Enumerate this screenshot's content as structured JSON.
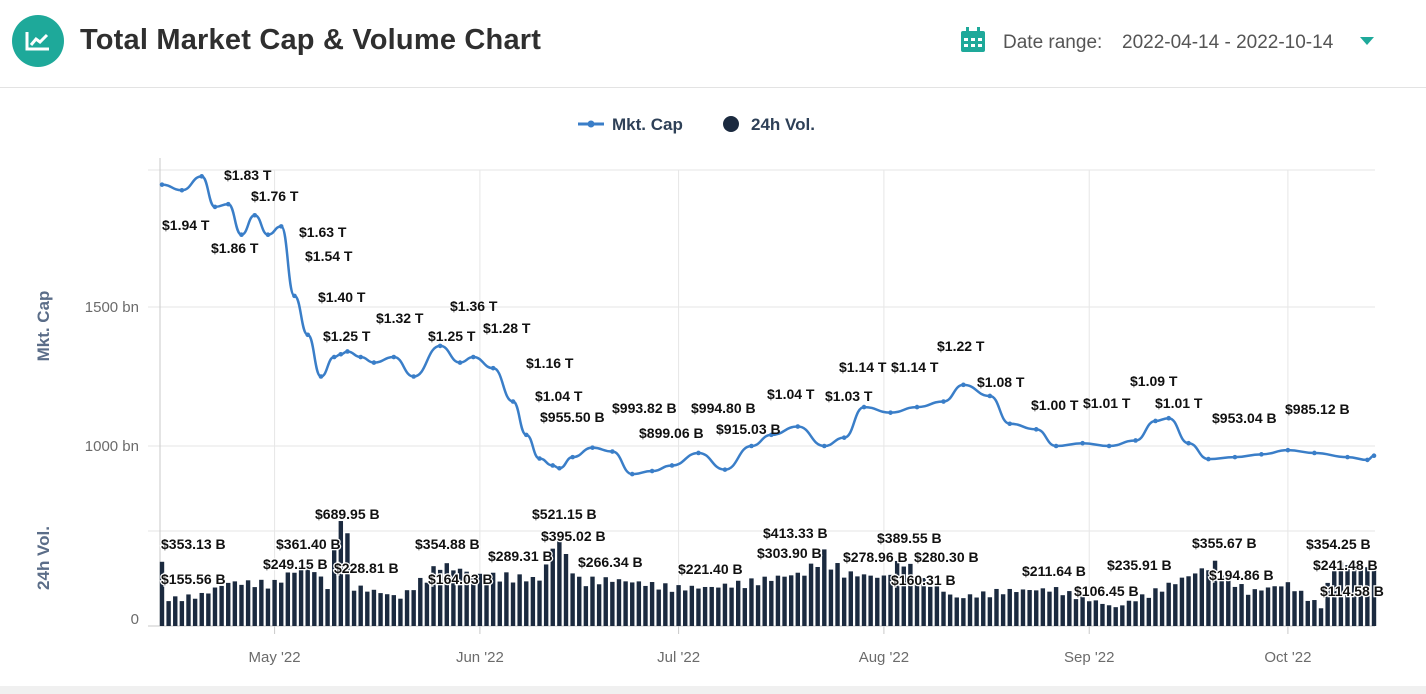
{
  "header": {
    "title": "Total Market Cap & Volume Chart",
    "date_range_label": "Date range:",
    "date_range_value": "2022-04-14 - 2022-10-14",
    "icons": {
      "logo": "line-chart-icon",
      "calendar": "calendar-icon",
      "dropdown": "caret-down-icon"
    },
    "accent_color": "#1ea99a"
  },
  "chart_data": {
    "type": "line",
    "secondary_type": "bar",
    "legend": [
      {
        "name": "Mkt. Cap",
        "color": "#3a7ec8"
      },
      {
        "name": "24h Vol.",
        "color": "#1b2a3f"
      }
    ],
    "legend_position": "top-center",
    "grid": true,
    "x_ticks": [
      "May '22",
      "Jun '22",
      "Jul '22",
      "Aug '22",
      "Sep '22",
      "Oct '22"
    ],
    "x_range": [
      "2022-04-14",
      "2022-10-14"
    ],
    "mkt_cap_axis": {
      "label": "Mkt. Cap",
      "ticks": [
        "1500 bn",
        "1000 bn"
      ],
      "range_bn": [
        790,
        2000
      ]
    },
    "vol_axis": {
      "label": "24h Vol.",
      "ticks": [
        "0"
      ],
      "range_bn": [
        0,
        720
      ]
    },
    "series": [
      {
        "name": "Mkt. Cap",
        "unit": "bn USD",
        "x": [
          "2022-04-14",
          "2022-04-17",
          "2022-04-20",
          "2022-04-22",
          "2022-04-24",
          "2022-04-26",
          "2022-04-28",
          "2022-04-30",
          "2022-05-02",
          "2022-05-04",
          "2022-05-06",
          "2022-05-08",
          "2022-05-10",
          "2022-05-11",
          "2022-05-12",
          "2022-05-14",
          "2022-05-16",
          "2022-05-19",
          "2022-05-22",
          "2022-05-26",
          "2022-05-29",
          "2022-05-31",
          "2022-06-03",
          "2022-06-06",
          "2022-06-08",
          "2022-06-10",
          "2022-06-12",
          "2022-06-13",
          "2022-06-15",
          "2022-06-18",
          "2022-06-21",
          "2022-06-24",
          "2022-06-27",
          "2022-06-30",
          "2022-07-04",
          "2022-07-08",
          "2022-07-12",
          "2022-07-15",
          "2022-07-19",
          "2022-07-23",
          "2022-07-26",
          "2022-07-29",
          "2022-08-02",
          "2022-08-06",
          "2022-08-10",
          "2022-08-13",
          "2022-08-17",
          "2022-08-20",
          "2022-08-24",
          "2022-08-27",
          "2022-08-31",
          "2022-09-04",
          "2022-09-08",
          "2022-09-11",
          "2022-09-13",
          "2022-09-16",
          "2022-09-19",
          "2022-09-23",
          "2022-09-27",
          "2022-10-01",
          "2022-10-05",
          "2022-10-10",
          "2022-10-13",
          "2022-10-14"
        ],
        "values": [
          1940,
          1920,
          1970,
          1860,
          1870,
          1760,
          1830,
          1760,
          1790,
          1540,
          1400,
          1250,
          1320,
          1330,
          1340,
          1320,
          1300,
          1320,
          1250,
          1360,
          1300,
          1320,
          1280,
          1160,
          1040,
          955,
          930,
          920,
          960,
          994,
          980,
          899,
          910,
          930,
          975,
          915,
          1000,
          1040,
          1070,
          1000,
          1030,
          1140,
          1120,
          1140,
          1160,
          1220,
          1180,
          1080,
          1060,
          1000,
          1010,
          1000,
          1020,
          1090,
          1100,
          1010,
          953,
          960,
          970,
          985,
          975,
          960,
          950,
          965
        ]
      },
      {
        "name": "24h Vol.",
        "unit": "bn USD",
        "x": [
          "2022-04-14",
          "2022-04-15",
          "2022-04-20",
          "2022-04-24",
          "2022-05-01",
          "2022-05-06",
          "2022-05-09",
          "2022-05-11",
          "2022-05-12",
          "2022-05-13",
          "2022-05-20",
          "2022-05-26",
          "2022-06-01",
          "2022-06-05",
          "2022-06-10",
          "2022-06-13",
          "2022-06-14",
          "2022-06-16",
          "2022-06-21",
          "2022-07-01",
          "2022-07-06",
          "2022-07-20",
          "2022-07-23",
          "2022-07-26",
          "2022-08-01",
          "2022-08-04",
          "2022-08-06",
          "2022-08-12",
          "2022-08-18",
          "2022-08-27",
          "2022-09-05",
          "2022-09-13",
          "2022-09-20",
          "2022-09-25",
          "2022-10-01",
          "2022-10-06",
          "2022-10-08",
          "2022-10-14"
        ],
        "values": [
          353.13,
          155.56,
          180,
          249.15,
          249.15,
          361.4,
          228.81,
          689.95,
          500,
          228.81,
          164.03,
          354.88,
          289.31,
          289.31,
          266.34,
          521.15,
          395.02,
          266.34,
          266.34,
          221.4,
          221.4,
          303.9,
          413.33,
          303.9,
          278.96,
          389.55,
          280.3,
          160.31,
          200,
          211.64,
          106.45,
          235.91,
          355.67,
          194.86,
          241.48,
          114.58,
          354.25,
          354.25
        ]
      }
    ],
    "annotations": {
      "mkt_cap": [
        "$1.94 T",
        "$1.83 T",
        "$1.86 T",
        "$1.76 T",
        "$1.63 T",
        "$1.54 T",
        "$1.40 T",
        "$1.25 T",
        "$1.32 T",
        "$1.25 T",
        "$1.36 T",
        "$1.28 T",
        "$1.16 T",
        "$1.04 T",
        "$955.50 B",
        "$993.82 B",
        "$899.06 B",
        "$994.80 B",
        "$915.03 B",
        "$1.04 T",
        "$1.03 T",
        "$1.14 T",
        "$1.14 T",
        "$1.22 T",
        "$1.08 T",
        "$1.00 T",
        "$1.01 T",
        "$1.09 T",
        "$1.01 T",
        "$953.04 B",
        "$985.12 B"
      ],
      "volume": [
        "$353.13 B",
        "$155.56 B",
        "$249.15 B",
        "$361.40 B",
        "$689.95 B",
        "$228.81 B",
        "$164.03 B",
        "$354.88 B",
        "$289.31 B",
        "$521.15 B",
        "$395.02 B",
        "$266.34 B",
        "$221.40 B",
        "$413.33 B",
        "$303.90 B",
        "$278.96 B",
        "$389.55 B",
        "$280.30 B",
        "$160.31 B",
        "$211.64 B",
        "$106.45 B",
        "$235.91 B",
        "$355.67 B",
        "$194.86 B",
        "$354.25 B",
        "$241.48 B",
        "$114.58 B"
      ]
    }
  }
}
